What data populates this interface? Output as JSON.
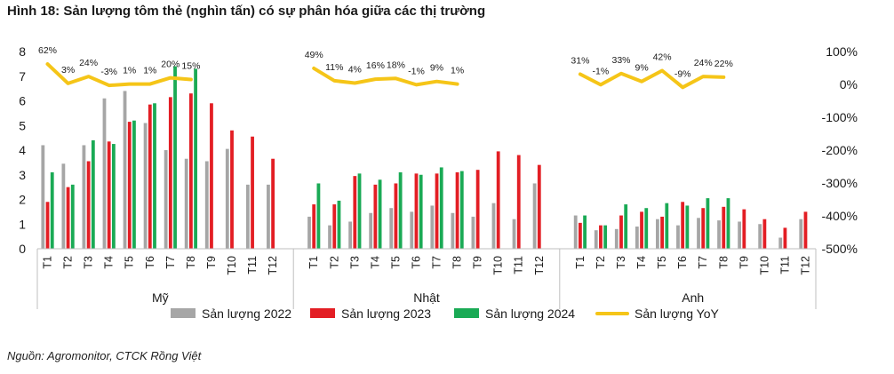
{
  "title": "Hình 18: Sản lượng tôm thẻ (nghìn tấn) có sự phân hóa giữa các thị trường",
  "source": "Nguồn: Agromonitor, CTCK Rồng Việt",
  "chart_data": {
    "type": "bar",
    "title": "Hình 18: Sản lượng tôm thẻ (nghìn tấn) có sự phân hóa giữa các thị trường",
    "groups": [
      "Mỹ",
      "Nhật",
      "Anh"
    ],
    "categories": [
      "T1",
      "T2",
      "T3",
      "T4",
      "T5",
      "T6",
      "T7",
      "T8",
      "T9",
      "T10",
      "T11",
      "T12"
    ],
    "ylim_left": [
      0,
      8
    ],
    "yticks_left": [
      "0",
      "1",
      "2",
      "3",
      "4",
      "5",
      "6",
      "7",
      "8"
    ],
    "ylim_right": [
      -500,
      100
    ],
    "yticks_right": [
      "100%",
      "0%",
      "-100%",
      "-200%",
      "-300%",
      "-400%",
      "-500%"
    ],
    "grid": false,
    "legend_position": "bottom",
    "colors": {
      "Sản lượng 2022": "#a6a6a6",
      "Sản lượng 2023": "#e31e24",
      "Sản lượng 2024": "#1aaa55",
      "Sản lượng YoY": "#f5c518"
    },
    "series": [
      {
        "name": "Sản lượng 2022",
        "kind": "bar",
        "axis": "left",
        "values": {
          "Mỹ": [
            4.2,
            3.45,
            4.2,
            6.1,
            6.4,
            5.1,
            4.0,
            3.65,
            3.55,
            4.05,
            2.6,
            2.6
          ],
          "Nhật": [
            1.3,
            0.95,
            1.1,
            1.45,
            1.65,
            1.5,
            1.75,
            1.45,
            1.3,
            1.85,
            1.2,
            2.65
          ],
          "Anh": [
            1.35,
            0.75,
            0.8,
            0.9,
            1.2,
            0.95,
            1.25,
            1.15,
            1.1,
            1.0,
            0.45,
            1.2
          ]
        }
      },
      {
        "name": "Sản lượng 2023",
        "kind": "bar",
        "axis": "left",
        "values": {
          "Mỹ": [
            1.9,
            2.5,
            3.55,
            4.35,
            5.15,
            5.85,
            6.15,
            6.3,
            5.9,
            4.8,
            4.55,
            3.65
          ],
          "Nhật": [
            1.8,
            1.8,
            2.95,
            2.6,
            2.65,
            3.05,
            3.05,
            3.1,
            3.2,
            3.95,
            3.8,
            3.4
          ],
          "Anh": [
            1.05,
            0.95,
            1.35,
            1.5,
            1.3,
            1.9,
            1.65,
            1.7,
            1.6,
            1.2,
            0.85,
            1.5
          ]
        }
      },
      {
        "name": "Sản lượng 2024",
        "kind": "bar",
        "axis": "left",
        "values": {
          "Mỹ": [
            3.1,
            2.6,
            4.4,
            4.25,
            5.2,
            5.9,
            7.4,
            7.3,
            null,
            null,
            null,
            null
          ],
          "Nhật": [
            2.65,
            1.95,
            3.05,
            2.8,
            3.1,
            3.0,
            3.3,
            3.15,
            null,
            null,
            null,
            null
          ],
          "Anh": [
            1.35,
            0.95,
            1.8,
            1.65,
            1.85,
            1.75,
            2.05,
            2.05,
            null,
            null,
            null,
            null
          ]
        }
      },
      {
        "name": "Sản lượng YoY",
        "kind": "line",
        "axis": "right",
        "values": {
          "Mỹ": [
            62,
            3,
            24,
            -3,
            1,
            1,
            20,
            15,
            null,
            null,
            null,
            null
          ],
          "Nhật": [
            49,
            11,
            4,
            16,
            18,
            -1,
            9,
            1,
            null,
            null,
            null,
            null
          ],
          "Anh": [
            31,
            -1,
            33,
            9,
            42,
            -9,
            24,
            22,
            null,
            null,
            null,
            null
          ]
        },
        "labels": {
          "Mỹ": [
            "62%",
            "3%",
            "24%",
            "-3%",
            "1%",
            "1%",
            "20%",
            "15%"
          ],
          "Nhật": [
            "49%",
            "11%",
            "4%",
            "16%",
            "18%",
            "-1%",
            "9%",
            "1%"
          ],
          "Anh": [
            "31%",
            "-1%",
            "33%",
            "9%",
            "42%",
            "-9%",
            "24%",
            "22%"
          ]
        }
      }
    ]
  }
}
